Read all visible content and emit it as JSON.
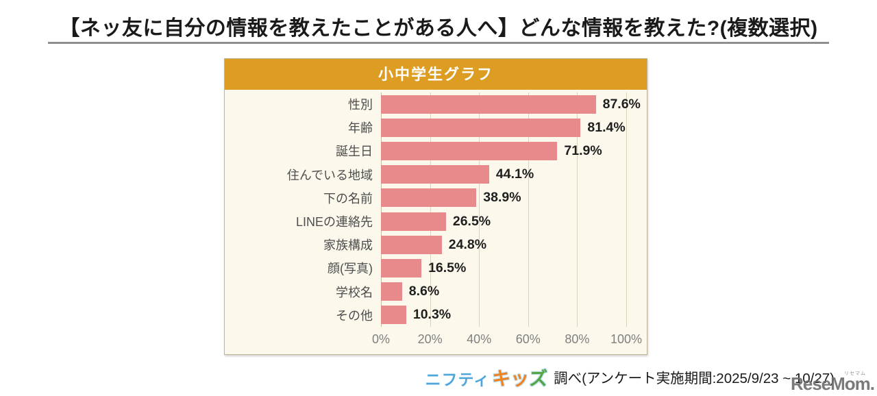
{
  "title": "【ネッ友に自分の情報を教えたことがある人へ】どんな情報を教えた?(複数選択)",
  "panel": {
    "header": "小中学生グラフ"
  },
  "chart_data": {
    "type": "bar",
    "orientation": "horizontal",
    "title": "小中学生グラフ",
    "categories": [
      "性別",
      "年齢",
      "誕生日",
      "住んでいる地域",
      "下の名前",
      "LINEの連絡先",
      "家族構成",
      "顔(写真)",
      "学校名",
      "その他"
    ],
    "values": [
      87.6,
      81.4,
      71.9,
      44.1,
      38.9,
      26.5,
      24.8,
      16.5,
      8.6,
      10.3
    ],
    "value_labels": [
      "87.6%",
      "81.4%",
      "71.9%",
      "44.1%",
      "38.9%",
      "26.5%",
      "24.8%",
      "16.5%",
      "8.6%",
      "10.3%"
    ],
    "xlabel": "",
    "ylabel": "",
    "xlim": [
      0,
      100
    ],
    "x_ticks": [
      "0%",
      "20%",
      "40%",
      "60%",
      "80%",
      "100%"
    ],
    "x_tick_values": [
      0,
      20,
      40,
      60,
      80,
      100
    ],
    "grid": true,
    "legend": false,
    "colors": {
      "bar": "#E8898B",
      "panel_header_bg": "#DD9D22",
      "panel_body_bg": "#FCF9EC",
      "grid_line": "#D9D2BC",
      "tick_text": "#7F7F7F",
      "category_text": "#4D4D4D",
      "value_text": "#1F1F1F"
    }
  },
  "footer": {
    "logo": {
      "part1": "ニフティ",
      "part1_color": "#4FA6DB",
      "part2_chars": [
        "キ",
        "ッ",
        "ズ"
      ],
      "part2_colors": [
        "#F08320",
        "#F08320",
        "#55A546"
      ]
    },
    "survey_text": "調べ(アンケート実施期間:2025/9/23 ~ 10/27)"
  },
  "watermark": {
    "text": "ReseMom.",
    "ruby": "リセマム"
  }
}
